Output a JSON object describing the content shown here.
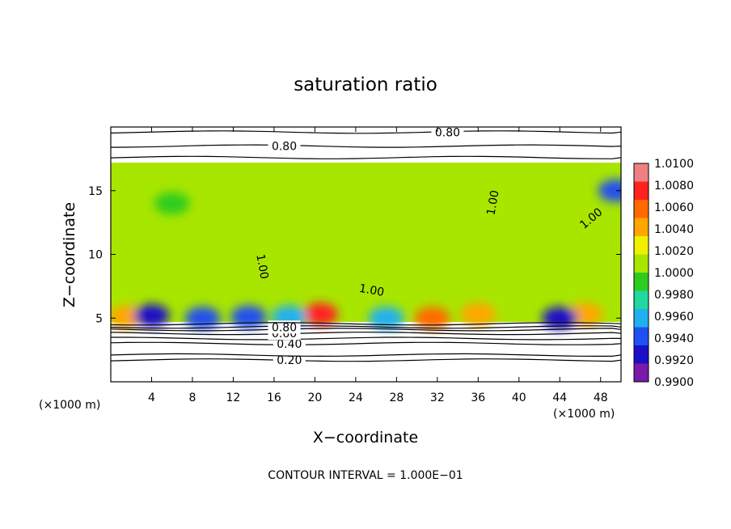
{
  "chart_data": {
    "type": "heatmap",
    "title": "saturation ratio",
    "xlabel": "X−coordinate",
    "ylabel": "Z−coordinate",
    "x_unit_left": "(×1000 m)",
    "x_unit_right": "(×1000 m)",
    "footer": "CONTOUR INTERVAL = 1.000E−01",
    "xlim": [
      0,
      50
    ],
    "ylim": [
      0,
      20
    ],
    "x_ticks": [
      4,
      8,
      12,
      16,
      20,
      24,
      28,
      32,
      36,
      40,
      44,
      48
    ],
    "x_tick_labels": [
      "4",
      "8",
      "12",
      "16",
      "20",
      "24",
      "28",
      "32",
      "36",
      "40",
      "44",
      "48"
    ],
    "y_ticks": [
      5,
      10,
      15
    ],
    "y_tick_labels": [
      "5",
      "10",
      "15"
    ],
    "field_top": 17.2,
    "field_bottom": 4.7,
    "field_base_value": 1.0008,
    "colorbar": {
      "min": 0.99,
      "max": 1.01,
      "labels": [
        "1.0100",
        "1.0080",
        "1.0060",
        "1.0040",
        "1.0020",
        "1.0000",
        "0.9980",
        "0.9960",
        "0.9940",
        "0.9920",
        "0.9900"
      ],
      "colors": [
        "#f08080",
        "#ff2020",
        "#ff6a00",
        "#ffa600",
        "#f0f000",
        "#a8e600",
        "#2ecc1e",
        "#20d8a0",
        "#20b0f0",
        "#2050f0",
        "#1a10c8",
        "#7a1aa8"
      ]
    },
    "blobs": [
      {
        "x": 20.5,
        "y": 5.3,
        "value": 1.0075
      },
      {
        "x": 31.5,
        "y": 5.0,
        "value": 1.0055
      },
      {
        "x": 36.0,
        "y": 5.3,
        "value": 1.0045
      },
      {
        "x": 1.5,
        "y": 5.1,
        "value": 1.004
      },
      {
        "x": 46.5,
        "y": 5.3,
        "value": 1.004
      },
      {
        "x": 4.0,
        "y": 5.2,
        "value": 0.993
      },
      {
        "x": 9.0,
        "y": 5.0,
        "value": 0.9935
      },
      {
        "x": 13.5,
        "y": 5.1,
        "value": 0.9945
      },
      {
        "x": 17.5,
        "y": 5.1,
        "value": 0.9955
      },
      {
        "x": 27.0,
        "y": 5.0,
        "value": 0.9965
      },
      {
        "x": 44.0,
        "y": 5.0,
        "value": 0.993
      },
      {
        "x": 49.5,
        "y": 15.0,
        "value": 0.995
      },
      {
        "x": 25.0,
        "y": 9.0,
        "value": 1.0014
      },
      {
        "x": 6.0,
        "y": 14.0,
        "value": 0.999
      }
    ],
    "contours": [
      {
        "value": 0.2,
        "label": "0.20",
        "label_x": 17.5,
        "z": 1.7
      },
      {
        "value": 0.3,
        "label": "",
        "label_x": 0,
        "z": 2.1
      },
      {
        "value": 0.4,
        "label": "0.40",
        "label_x": 17.5,
        "z": 3.0
      },
      {
        "value": 0.5,
        "label": "",
        "label_x": 0,
        "z": 3.4
      },
      {
        "value": 0.6,
        "label": "0.60",
        "label_x": 17.0,
        "z": 3.8
      },
      {
        "value": 0.7,
        "label": "",
        "label_x": 0,
        "z": 4.1
      },
      {
        "value": 0.8,
        "label": "0.80",
        "label_x": 17.0,
        "z": 4.3
      },
      {
        "value": 0.9,
        "label": "",
        "label_x": 0,
        "z": 4.55
      },
      {
        "value": 0.8,
        "label": "0.80",
        "label_x": 17.0,
        "z": 18.5
      },
      {
        "value": 0.8,
        "label": "0.80",
        "label_x": 33.0,
        "z": 19.6
      },
      {
        "value": 0.9,
        "label": "",
        "label_x": 0,
        "z": 17.6
      }
    ],
    "contour_labels_1": [
      {
        "text": "1.00",
        "x": 37.8,
        "z": 14.0,
        "rotate": -80
      },
      {
        "text": "1.00",
        "x": 47.3,
        "z": 12.6,
        "rotate": -40
      },
      {
        "text": "1.00",
        "x": 14.5,
        "z": 9.0,
        "rotate": 80
      },
      {
        "text": "1.00",
        "x": 25.5,
        "z": 6.9,
        "rotate": 10
      }
    ]
  }
}
